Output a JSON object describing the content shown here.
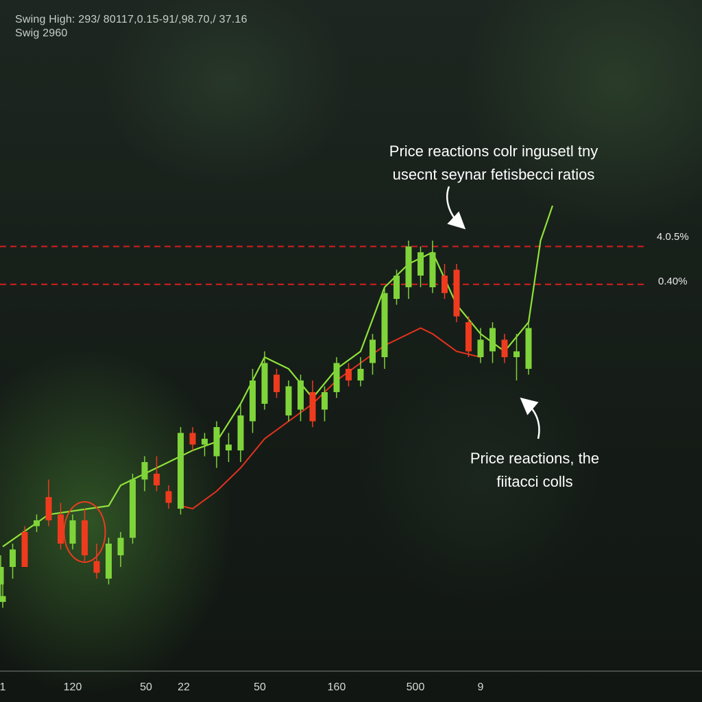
{
  "hud": {
    "line1": "Swing High: 293/ 80117,0.15-91/,98.70,/ 37.16",
    "line2": "Swig 2960"
  },
  "annotations": {
    "top_line1": "Price reactions colr ingusetl tny",
    "top_line2": "usecnt seynar fetisbecci ratios",
    "bottom_line1": "Price reactions, the",
    "bottom_line2": "fiitacci colls"
  },
  "colors": {
    "bullish": "#7fd43a",
    "bearish": "#ee3b1e",
    "trend_line": "#8fe23a",
    "moving_average": "#e8321e",
    "level_line": "#d81e1e",
    "annotation_arrow": "#ffffff"
  },
  "chart_data": {
    "type": "candlestick",
    "title": "",
    "xlabel": "",
    "ylabel": "",
    "x_tick_labels": [
      "1",
      "120",
      "50",
      "22",
      "50",
      "160",
      "500",
      "9"
    ],
    "ylim": [
      0,
      100
    ],
    "levels": [
      {
        "label": "4.0.5%",
        "value": 73.0,
        "style": "dashed"
      },
      {
        "label": "0.40%",
        "value": 66.5,
        "style": "dashed"
      }
    ],
    "candles": [
      {
        "x": 1,
        "open": 12,
        "high": 16,
        "low": 11,
        "close": 13,
        "dir": "up"
      },
      {
        "x": 2,
        "open": 15,
        "high": 20,
        "low": 13,
        "close": 18,
        "dir": "up"
      },
      {
        "x": 3,
        "open": 18,
        "high": 22,
        "low": 16,
        "close": 21,
        "dir": "up"
      },
      {
        "x": 4,
        "open": 24,
        "high": 25,
        "low": 18,
        "close": 18,
        "dir": "down"
      },
      {
        "x": 5,
        "open": 25,
        "high": 27,
        "low": 24,
        "close": 26,
        "dir": "up"
      },
      {
        "x": 6,
        "open": 30,
        "high": 33,
        "low": 25,
        "close": 26,
        "dir": "down"
      },
      {
        "x": 7,
        "open": 27,
        "high": 29,
        "low": 21,
        "close": 22,
        "dir": "down"
      },
      {
        "x": 8,
        "open": 22,
        "high": 27,
        "low": 21,
        "close": 26,
        "dir": "up"
      },
      {
        "x": 9,
        "open": 26,
        "high": 28,
        "low": 19,
        "close": 20,
        "dir": "down"
      },
      {
        "x": 10,
        "open": 19,
        "high": 22,
        "low": 16,
        "close": 17,
        "dir": "down"
      },
      {
        "x": 11,
        "open": 16,
        "high": 23,
        "low": 15,
        "close": 22,
        "dir": "up"
      },
      {
        "x": 12,
        "open": 20,
        "high": 24,
        "low": 18,
        "close": 23,
        "dir": "up"
      },
      {
        "x": 13,
        "open": 23,
        "high": 34,
        "low": 22,
        "close": 33,
        "dir": "up"
      },
      {
        "x": 14,
        "open": 33,
        "high": 37,
        "low": 31,
        "close": 36,
        "dir": "up"
      },
      {
        "x": 15,
        "open": 34,
        "high": 37,
        "low": 31,
        "close": 32,
        "dir": "down"
      },
      {
        "x": 16,
        "open": 31,
        "high": 32,
        "low": 28,
        "close": 29,
        "dir": "down"
      },
      {
        "x": 17,
        "open": 28,
        "high": 42,
        "low": 27,
        "close": 41,
        "dir": "up"
      },
      {
        "x": 18,
        "open": 41,
        "high": 42,
        "low": 38,
        "close": 39,
        "dir": "down"
      },
      {
        "x": 19,
        "open": 39,
        "high": 41,
        "low": 37,
        "close": 40,
        "dir": "up"
      },
      {
        "x": 20,
        "open": 37,
        "high": 43,
        "low": 35,
        "close": 42,
        "dir": "up"
      },
      {
        "x": 21,
        "open": 38,
        "high": 41,
        "low": 36,
        "close": 39,
        "dir": "up"
      },
      {
        "x": 22,
        "open": 38,
        "high": 46,
        "low": 36,
        "close": 44,
        "dir": "up"
      },
      {
        "x": 23,
        "open": 43,
        "high": 52,
        "low": 41,
        "close": 50,
        "dir": "up"
      },
      {
        "x": 24,
        "open": 46,
        "high": 55,
        "low": 45,
        "close": 53,
        "dir": "up"
      },
      {
        "x": 25,
        "open": 51,
        "high": 52,
        "low": 47,
        "close": 48,
        "dir": "down"
      },
      {
        "x": 26,
        "open": 44,
        "high": 50,
        "low": 43,
        "close": 49,
        "dir": "up"
      },
      {
        "x": 27,
        "open": 45,
        "high": 51,
        "low": 43,
        "close": 50,
        "dir": "up"
      },
      {
        "x": 28,
        "open": 48,
        "high": 50,
        "low": 42,
        "close": 43,
        "dir": "down"
      },
      {
        "x": 29,
        "open": 45,
        "high": 49,
        "low": 43,
        "close": 48,
        "dir": "up"
      },
      {
        "x": 30,
        "open": 48,
        "high": 54,
        "low": 47,
        "close": 53,
        "dir": "up"
      },
      {
        "x": 31,
        "open": 52,
        "high": 53,
        "low": 49,
        "close": 50,
        "dir": "down"
      },
      {
        "x": 32,
        "open": 50,
        "high": 54,
        "low": 49,
        "close": 52,
        "dir": "up"
      },
      {
        "x": 33,
        "open": 53,
        "high": 58,
        "low": 51,
        "close": 57,
        "dir": "up"
      },
      {
        "x": 34,
        "open": 54,
        "high": 66,
        "low": 52,
        "close": 65,
        "dir": "up"
      },
      {
        "x": 35,
        "open": 64,
        "high": 69,
        "low": 63,
        "close": 68,
        "dir": "up"
      },
      {
        "x": 36,
        "open": 66,
        "high": 74,
        "low": 64,
        "close": 73,
        "dir": "up"
      },
      {
        "x": 37,
        "open": 68,
        "high": 73,
        "low": 66,
        "close": 72,
        "dir": "up"
      },
      {
        "x": 38,
        "open": 72,
        "high": 74,
        "low": 65,
        "close": 66,
        "dir": "up"
      },
      {
        "x": 39,
        "open": 68,
        "high": 70,
        "low": 64,
        "close": 65,
        "dir": "down"
      },
      {
        "x": 40,
        "open": 69,
        "high": 70,
        "low": 60,
        "close": 61,
        "dir": "down"
      },
      {
        "x": 41,
        "open": 60,
        "high": 61,
        "low": 54,
        "close": 55,
        "dir": "down"
      },
      {
        "x": 42,
        "open": 57,
        "high": 59,
        "low": 53,
        "close": 54,
        "dir": "up"
      },
      {
        "x": 43,
        "open": 55,
        "high": 60,
        "low": 53,
        "close": 59,
        "dir": "up"
      },
      {
        "x": 44,
        "open": 57,
        "high": 58,
        "low": 53,
        "close": 54,
        "dir": "down"
      },
      {
        "x": 45,
        "open": 54,
        "high": 58,
        "low": 50,
        "close": 55,
        "dir": "up"
      },
      {
        "x": 46,
        "open": 52,
        "high": 60,
        "low": 51,
        "close": 59,
        "dir": "up"
      }
    ],
    "trend_line": {
      "name": "",
      "points": [
        [
          1,
          21.5
        ],
        [
          6,
          27
        ],
        [
          11,
          28.5
        ],
        [
          12,
          32
        ],
        [
          16,
          36
        ],
        [
          18,
          38
        ],
        [
          20,
          39.5
        ],
        [
          22,
          46
        ],
        [
          24,
          54
        ],
        [
          26,
          52
        ],
        [
          28,
          47
        ],
        [
          30,
          52
        ],
        [
          32,
          55
        ],
        [
          34,
          66
        ],
        [
          36,
          70
        ],
        [
          38,
          72
        ],
        [
          40,
          63
        ],
        [
          42,
          58
        ],
        [
          44,
          55
        ],
        [
          46,
          60
        ],
        [
          47,
          74
        ],
        [
          48,
          80
        ]
      ]
    },
    "moving_average": {
      "name": "",
      "points": [
        [
          17,
          28.5
        ],
        [
          18,
          28
        ],
        [
          20,
          31
        ],
        [
          22,
          35
        ],
        [
          24,
          40
        ],
        [
          26,
          43
        ],
        [
          28,
          46
        ],
        [
          30,
          50
        ],
        [
          32,
          53
        ],
        [
          34,
          56
        ],
        [
          36,
          58
        ],
        [
          37,
          59
        ],
        [
          38,
          58
        ],
        [
          40,
          55
        ],
        [
          42,
          54
        ]
      ]
    },
    "highlight_circle": {
      "x": 9,
      "y": 24
    }
  }
}
